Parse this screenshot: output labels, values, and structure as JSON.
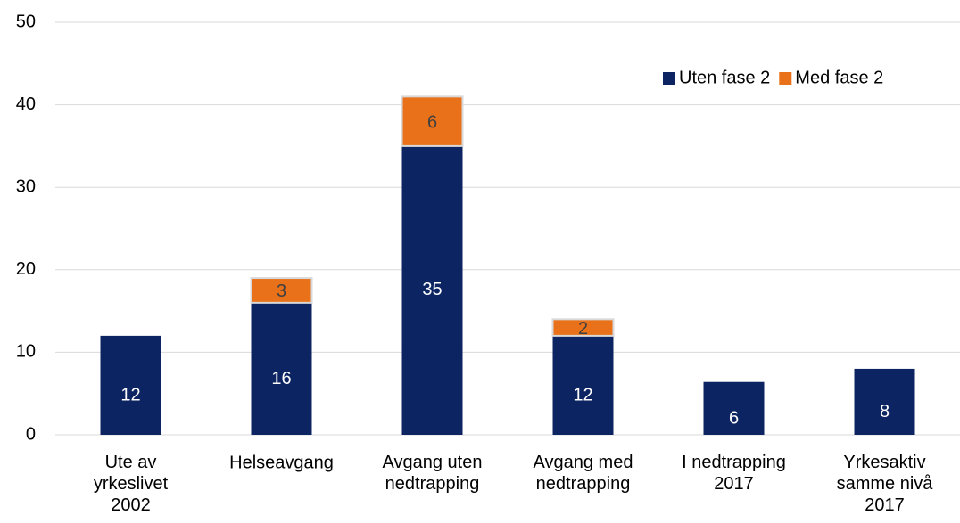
{
  "chart_data": {
    "type": "stacked_bar",
    "categories": [
      "Ute av\nyrkeslivet\n2002",
      "Helseavgang",
      "Avgang uten\nnedtrapping",
      "Avgang med\nnedtrapping",
      "I nedtrapping\n2017",
      "Yrkesaktiv\nsamme nivå\n2017"
    ],
    "series": [
      {
        "name": "Uten fase 2",
        "color": "#0c2461",
        "values": [
          12,
          16,
          35,
          12,
          6.4,
          8
        ],
        "value_labels": [
          "12",
          "16",
          "35",
          "12",
          "6",
          "8"
        ]
      },
      {
        "name": "Med fase 2",
        "color": "#e8711a",
        "values": [
          null,
          3,
          6,
          2,
          null,
          null
        ]
      }
    ],
    "ylim": [
      0,
      50
    ],
    "yticks": [
      0,
      10,
      20,
      30,
      40,
      50
    ],
    "grid": true,
    "legend": "top-right"
  }
}
